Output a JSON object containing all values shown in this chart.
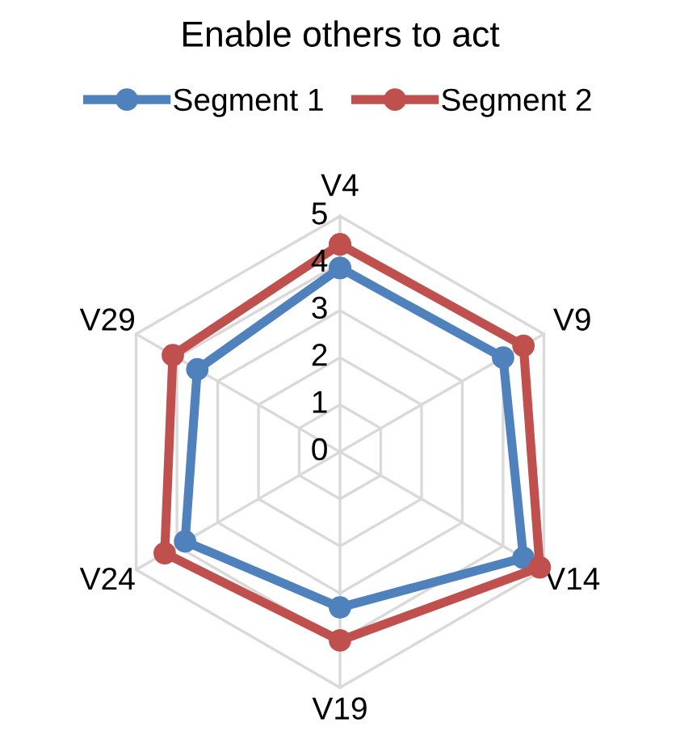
{
  "chart_data": {
    "type": "radar",
    "title": "Enable others to act",
    "categories": [
      "V4",
      "V9",
      "V14",
      "V19",
      "V24",
      "V29"
    ],
    "series": [
      {
        "name": "Segment 1",
        "color": "#4f81bd",
        "values": [
          3.9,
          4.0,
          4.5,
          3.3,
          3.8,
          3.5
        ]
      },
      {
        "name": "Segment 2",
        "color": "#c0504d",
        "values": [
          4.4,
          4.5,
          4.9,
          4.0,
          4.3,
          4.1
        ]
      }
    ],
    "ylim": [
      0,
      5
    ],
    "yticks": [
      0,
      1,
      2,
      3,
      4,
      5
    ],
    "grid": true,
    "legend": "top",
    "marker": "circle",
    "line_style": "solid"
  }
}
